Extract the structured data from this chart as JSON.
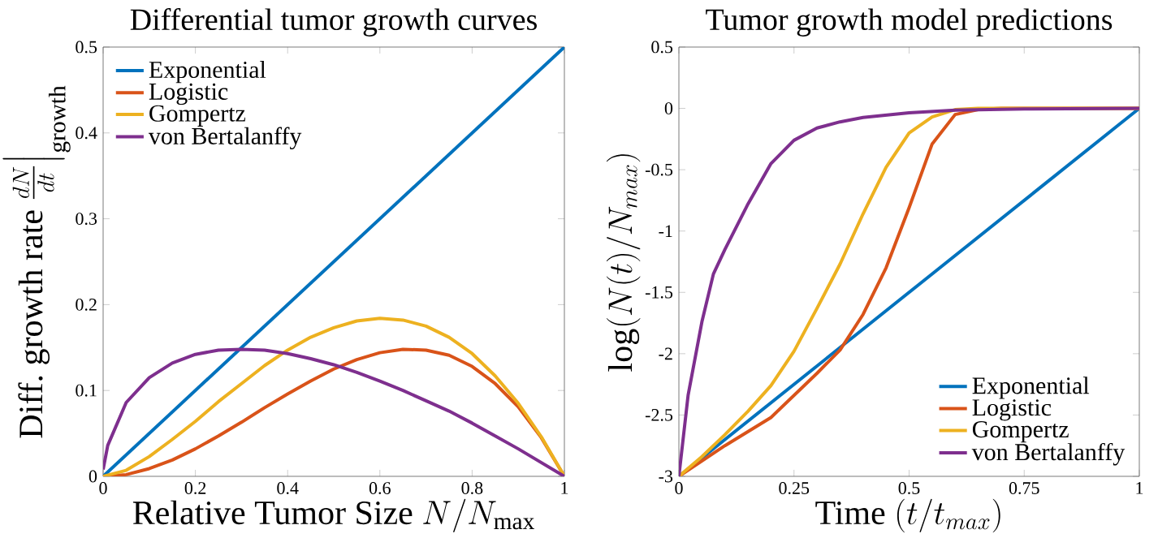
{
  "chart_data": [
    {
      "type": "line",
      "title": "Differential tumor growth curves",
      "xlabel": "\\text{Relative Tumor Size }N/N_{\\mathrm{max}}",
      "ylabel": "\\text{Diff.\\ growth rate }\\frac{dN}{dt}\\Big|_{\\mathrm{growth}}",
      "xlim": [
        0,
        1
      ],
      "ylim": [
        0,
        0.5
      ],
      "xticks": [
        0,
        0.2,
        0.4,
        0.6,
        0.8,
        1
      ],
      "yticks": [
        0,
        0.1,
        0.2,
        0.3,
        0.4,
        0.5
      ],
      "legend": "top left",
      "series": [
        {
          "name": "Exponential",
          "color": "#0072bd",
          "x": [
            0,
            1
          ],
          "values": [
            0,
            0.5
          ]
        },
        {
          "name": "Logistic",
          "color": "#d95319",
          "x": [
            0,
            0.05,
            0.1,
            0.15,
            0.2,
            0.25,
            0.3,
            0.35,
            0.4,
            0.45,
            0.5,
            0.55,
            0.6,
            0.65,
            0.7,
            0.75,
            0.8,
            0.85,
            0.9,
            0.95,
            1
          ],
          "values": [
            0,
            0.002,
            0.009,
            0.019,
            0.032,
            0.047,
            0.063,
            0.08,
            0.096,
            0.111,
            0.125,
            0.136,
            0.144,
            0.148,
            0.147,
            0.141,
            0.128,
            0.108,
            0.081,
            0.045,
            0
          ]
        },
        {
          "name": "Gompertz",
          "color": "#edb120",
          "x": [
            0,
            0.05,
            0.1,
            0.15,
            0.2,
            0.25,
            0.3,
            0.35,
            0.4,
            0.45,
            0.5,
            0.55,
            0.6,
            0.65,
            0.7,
            0.75,
            0.8,
            0.85,
            0.9,
            0.95,
            1
          ],
          "values": [
            0,
            0.007,
            0.023,
            0.043,
            0.064,
            0.087,
            0.108,
            0.129,
            0.147,
            0.162,
            0.173,
            0.181,
            0.184,
            0.182,
            0.175,
            0.162,
            0.143,
            0.117,
            0.085,
            0.046,
            0
          ]
        },
        {
          "name": "von Bertalanffy",
          "color": "#7e2f8e",
          "x": [
            0,
            0.01,
            0.05,
            0.1,
            0.15,
            0.2,
            0.25,
            0.3,
            0.35,
            0.4,
            0.45,
            0.5,
            0.55,
            0.6,
            0.65,
            0.7,
            0.75,
            0.8,
            0.85,
            0.9,
            0.95,
            1
          ],
          "values": [
            0.008,
            0.036,
            0.086,
            0.115,
            0.132,
            0.142,
            0.147,
            0.148,
            0.147,
            0.143,
            0.137,
            0.13,
            0.121,
            0.111,
            0.1,
            0.088,
            0.076,
            0.062,
            0.047,
            0.032,
            0.016,
            0
          ]
        }
      ]
    },
    {
      "type": "line",
      "title": "Tumor growth model predictions",
      "xlabel": "\\text{Time }(t/t_{max})",
      "ylabel": "\\log(N(t)/N_{max})",
      "xlim": [
        0,
        1
      ],
      "ylim": [
        -3,
        0.5
      ],
      "xticks": [
        0,
        0.25,
        0.5,
        0.75,
        1
      ],
      "yticks": [
        -3,
        -2.5,
        -2,
        -1.5,
        -1,
        -0.5,
        0,
        0.5
      ],
      "legend": "bottom right",
      "series": [
        {
          "name": "Exponential",
          "color": "#0072bd",
          "x": [
            0,
            1
          ],
          "values": [
            -3,
            0
          ]
        },
        {
          "name": "Logistic",
          "color": "#d95319",
          "x": [
            0,
            0.1,
            0.2,
            0.3,
            0.35,
            0.4,
            0.45,
            0.5,
            0.55,
            0.6,
            0.65,
            0.7,
            1
          ],
          "values": [
            -3,
            -2.75,
            -2.52,
            -2.16,
            -1.97,
            -1.68,
            -1.3,
            -0.81,
            -0.29,
            -0.05,
            -0.01,
            0,
            0
          ]
        },
        {
          "name": "Gompertz",
          "color": "#edb120",
          "x": [
            0,
            0.05,
            0.1,
            0.15,
            0.2,
            0.25,
            0.3,
            0.35,
            0.4,
            0.45,
            0.5,
            0.55,
            0.6,
            0.65,
            1
          ],
          "values": [
            -3,
            -2.84,
            -2.66,
            -2.47,
            -2.26,
            -1.98,
            -1.63,
            -1.27,
            -0.86,
            -0.48,
            -0.2,
            -0.07,
            -0.01,
            0,
            0
          ]
        },
        {
          "name": "von Bertalanffy",
          "color": "#7e2f8e",
          "x": [
            0,
            0.01,
            0.02,
            0.05,
            0.075,
            0.1,
            0.15,
            0.2,
            0.25,
            0.3,
            0.35,
            0.4,
            0.5,
            0.6,
            0.75,
            1
          ],
          "values": [
            -3,
            -2.67,
            -2.34,
            -1.74,
            -1.35,
            -1.15,
            -0.78,
            -0.45,
            -0.26,
            -0.16,
            -0.11,
            -0.074,
            -0.036,
            -0.014,
            -0.005,
            0
          ]
        }
      ]
    }
  ]
}
